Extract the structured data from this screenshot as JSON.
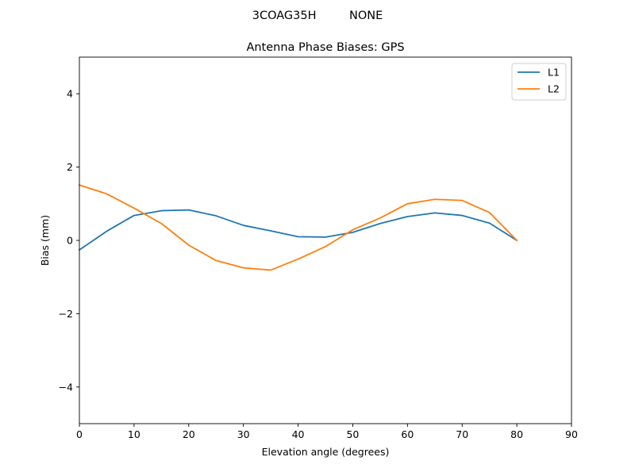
{
  "chart_data": {
    "type": "line",
    "suptitle": "3COAG35H         NONE",
    "title": "Antenna Phase Biases: GPS",
    "xlabel": "Elevation angle (degrees)",
    "ylabel": "Bias (mm)",
    "xlim": [
      0,
      90
    ],
    "ylim": [
      -5,
      5
    ],
    "xticks": [
      0,
      10,
      20,
      30,
      40,
      50,
      60,
      70,
      80,
      90
    ],
    "yticks": [
      -4,
      -2,
      0,
      2,
      4
    ],
    "ytick_labels": [
      "−4",
      "−2",
      "0",
      "2",
      "4"
    ],
    "grid": false,
    "legend_position": "top-right",
    "x": [
      0,
      5,
      10,
      15,
      20,
      25,
      30,
      35,
      40,
      45,
      50,
      55,
      60,
      65,
      70,
      75,
      80
    ],
    "series": [
      {
        "name": "L1",
        "color": "#1f77b4",
        "values": [
          -0.26,
          0.25,
          0.68,
          0.81,
          0.83,
          0.67,
          0.41,
          0.26,
          0.1,
          0.09,
          0.22,
          0.46,
          0.65,
          0.75,
          0.68,
          0.47,
          0.0
        ]
      },
      {
        "name": "L2",
        "color": "#ff7f0e",
        "values": [
          1.51,
          1.27,
          0.88,
          0.46,
          -0.13,
          -0.55,
          -0.75,
          -0.81,
          -0.51,
          -0.17,
          0.29,
          0.61,
          1.0,
          1.12,
          1.09,
          0.76,
          0.0
        ]
      }
    ]
  }
}
